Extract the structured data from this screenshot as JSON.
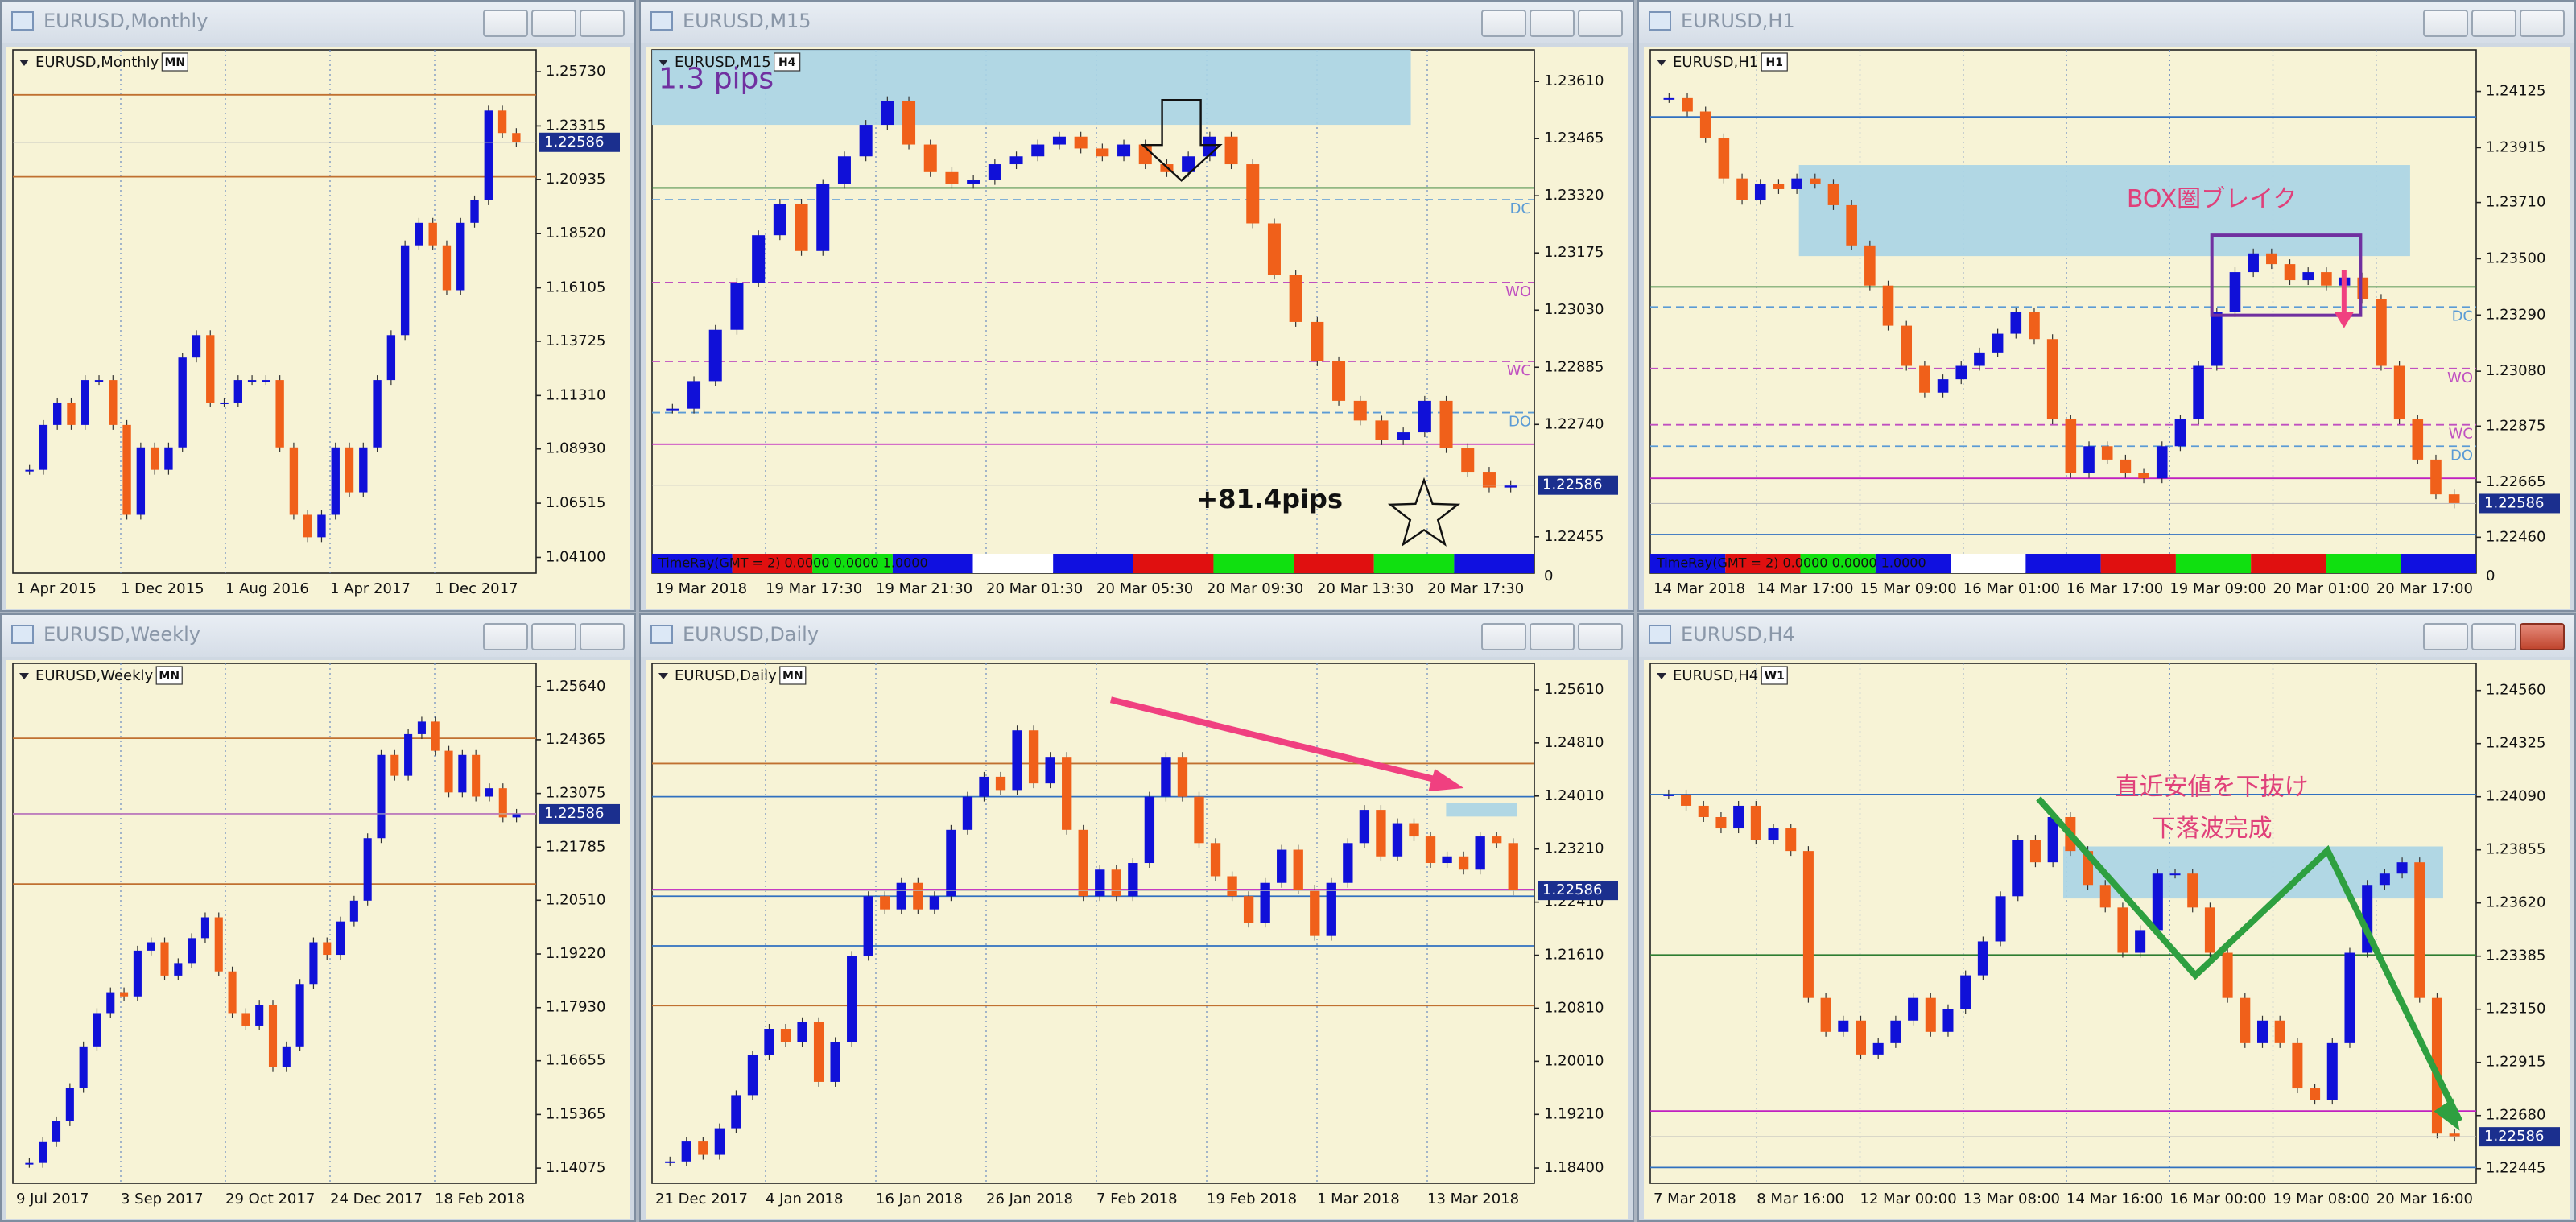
{
  "windows": [
    {
      "title": "EURUSD,Monthly",
      "label": "EURUSD,Monthly",
      "badge": "MN",
      "ylim": [
        1.034,
        1.267
      ],
      "price_ticks": [
        {
          "value": 1.2573,
          "label": "1.25730"
        },
        {
          "value": 1.23315,
          "label": "1.23315"
        },
        {
          "value": 1.20935,
          "label": "1.20935"
        },
        {
          "value": 1.1852,
          "label": "1.18520"
        },
        {
          "value": 1.16105,
          "label": "1.16105"
        },
        {
          "value": 1.13725,
          "label": "1.13725"
        },
        {
          "value": 1.1131,
          "label": "1.11310"
        },
        {
          "value": 1.0893,
          "label": "1.08930"
        },
        {
          "value": 1.06515,
          "label": "1.06515"
        },
        {
          "value": 1.041,
          "label": "1.04100"
        }
      ],
      "time_labels": [
        "1 Apr 2015",
        "1 Dec 2015",
        "1 Aug 2016",
        "1 Apr 2017",
        "1 Dec 2017"
      ],
      "current_price": 1.22586,
      "closes": [
        1.08,
        1.1,
        1.11,
        1.1,
        1.12,
        1.12,
        1.1,
        1.06,
        1.09,
        1.08,
        1.09,
        1.13,
        1.14,
        1.11,
        1.11,
        1.12,
        1.12,
        1.12,
        1.09,
        1.06,
        1.05,
        1.06,
        1.09,
        1.07,
        1.09,
        1.12,
        1.14,
        1.18,
        1.19,
        1.18,
        1.16,
        1.19,
        1.2,
        1.24,
        1.23,
        1.22586
      ],
      "levels": [
        {
          "value": 1.247,
          "color": "#c07030"
        },
        {
          "value": 1.2105,
          "color": "#c07030"
        }
      ],
      "annotations": []
    },
    {
      "title": "EURUSD,M15",
      "label": "EURUSD,M15",
      "badge": "H4",
      "ylim": [
        1.2242,
        1.2369
      ],
      "price_ticks": [
        {
          "value": 1.2361,
          "label": "1.23610"
        },
        {
          "value": 1.23465,
          "label": "1.23465"
        },
        {
          "value": 1.2332,
          "label": "1.23320"
        },
        {
          "value": 1.23175,
          "label": "1.23175"
        },
        {
          "value": 1.2303,
          "label": "1.23030"
        },
        {
          "value": 1.22885,
          "label": "1.22885"
        },
        {
          "value": 1.2274,
          "label": "1.22740"
        },
        {
          "value": 1.22455,
          "label": "1.22455"
        }
      ],
      "time_labels": [
        "19 Mar 2018",
        "19 Mar 17:30",
        "19 Mar 21:30",
        "20 Mar 01:30",
        "20 Mar 05:30",
        "20 Mar 09:30",
        "20 Mar 13:30",
        "20 Mar 17:30"
      ],
      "current_price": 1.22586,
      "closes": [
        1.2278,
        1.2285,
        1.2298,
        1.231,
        1.2322,
        1.233,
        1.2318,
        1.2335,
        1.2342,
        1.235,
        1.2356,
        1.2345,
        1.2338,
        1.2335,
        1.2336,
        1.234,
        1.2342,
        1.2345,
        1.2347,
        1.2344,
        1.2342,
        1.2345,
        1.234,
        1.2338,
        1.2342,
        1.2347,
        1.234,
        1.2325,
        1.2312,
        1.23,
        1.229,
        1.228,
        1.2275,
        1.227,
        1.2272,
        1.228,
        1.2268,
        1.2262,
        1.2258,
        1.22586
      ],
      "box": [
        1.235,
        1.2369
      ],
      "levels": [
        {
          "value": 1.2334,
          "color": "#2e7d32"
        },
        {
          "value": 1.2331,
          "color": "#5b9bd5",
          "label": "DC",
          "dash": true
        },
        {
          "value": 1.231,
          "color": "#c050c0",
          "label": "WO",
          "dash": true
        },
        {
          "value": 1.229,
          "color": "#c050c0",
          "label": "WC",
          "dash": true
        },
        {
          "value": 1.2277,
          "color": "#5b9bd5",
          "label": "DO",
          "dash": true
        },
        {
          "value": 1.2269,
          "color": "#c020c0"
        }
      ],
      "indicator": {
        "text": "TimeRay(GMT = 2) 0.0000 0.0000 1.0000",
        "scale": 0
      },
      "annotations": [
        {
          "text": "1.3 pips",
          "color": "#7030a0"
        },
        {
          "text": "+81.4pips",
          "color": "#111111"
        }
      ]
    },
    {
      "title": "EURUSD,H1",
      "label": "EURUSD,H1",
      "badge": "H1",
      "ylim": [
        1.2241,
        1.2428
      ],
      "price_ticks": [
        {
          "value": 1.24125,
          "label": "1.24125"
        },
        {
          "value": 1.23915,
          "label": "1.23915"
        },
        {
          "value": 1.2371,
          "label": "1.23710"
        },
        {
          "value": 1.235,
          "label": "1.23500"
        },
        {
          "value": 1.2329,
          "label": "1.23290"
        },
        {
          "value": 1.2308,
          "label": "1.23080"
        },
        {
          "value": 1.22875,
          "label": "1.22875"
        },
        {
          "value": 1.22665,
          "label": "1.22665"
        },
        {
          "value": 1.2246,
          "label": "1.22460"
        }
      ],
      "time_labels": [
        "14 Mar 2018",
        "14 Mar 17:00",
        "15 Mar 09:00",
        "16 Mar 01:00",
        "16 Mar 17:00",
        "19 Mar 09:00",
        "20 Mar 01:00",
        "20 Mar 17:00"
      ],
      "current_price": 1.22586,
      "closes": [
        1.241,
        1.2405,
        1.2395,
        1.238,
        1.2372,
        1.2378,
        1.2376,
        1.238,
        1.2378,
        1.237,
        1.2355,
        1.234,
        1.2325,
        1.231,
        1.23,
        1.2305,
        1.231,
        1.2315,
        1.2322,
        1.233,
        1.232,
        1.229,
        1.227,
        1.228,
        1.2275,
        1.227,
        1.2268,
        1.228,
        1.229,
        1.231,
        1.233,
        1.2345,
        1.2352,
        1.2348,
        1.2342,
        1.2345,
        1.234,
        1.2343,
        1.2335,
        1.231,
        1.229,
        1.2275,
        1.2262,
        1.22586
      ],
      "box": [
        1.2351,
        1.2385
      ],
      "levels": [
        {
          "value": 1.2403,
          "color": "#3070c0"
        },
        {
          "value": 1.23395,
          "color": "#2e7d32"
        },
        {
          "value": 1.2332,
          "color": "#5b9bd5",
          "label": "DC",
          "dash": true
        },
        {
          "value": 1.2309,
          "color": "#c050c0",
          "label": "WO",
          "dash": true
        },
        {
          "value": 1.2288,
          "color": "#c050c0",
          "label": "WC",
          "dash": true
        },
        {
          "value": 1.228,
          "color": "#5b9bd5",
          "label": "DO",
          "dash": true
        },
        {
          "value": 1.2268,
          "color": "#c020c0"
        },
        {
          "value": 1.2247,
          "color": "#3070c0"
        }
      ],
      "indicator": {
        "text": "TimeRay(GMT = 2) 0.0000 0.0000 1.0000",
        "scale": 0
      },
      "annotations": [
        {
          "text": "BOX圏ブレイク",
          "color": "#e0407a"
        }
      ]
    },
    {
      "title": "EURUSD,Weekly",
      "label": "EURUSD,Weekly",
      "badge": "MN",
      "ylim": [
        1.1371,
        1.262
      ],
      "price_ticks": [
        {
          "value": 1.2564,
          "label": "1.25640"
        },
        {
          "value": 1.24365,
          "label": "1.24365"
        },
        {
          "value": 1.23075,
          "label": "1.23075"
        },
        {
          "value": 1.21785,
          "label": "1.21785"
        },
        {
          "value": 1.2051,
          "label": "1.20510"
        },
        {
          "value": 1.1922,
          "label": "1.19220"
        },
        {
          "value": 1.1793,
          "label": "1.17930"
        },
        {
          "value": 1.16655,
          "label": "1.16655"
        },
        {
          "value": 1.15365,
          "label": "1.15365"
        },
        {
          "value": 1.14075,
          "label": "1.14075"
        }
      ],
      "time_labels": [
        "9 Jul 2017",
        "3 Sep 2017",
        "29 Oct 2017",
        "24 Dec 2017",
        "18 Feb 2018"
      ],
      "current_price": 1.22586,
      "closes": [
        1.142,
        1.147,
        1.152,
        1.16,
        1.17,
        1.178,
        1.183,
        1.182,
        1.193,
        1.195,
        1.187,
        1.19,
        1.196,
        1.201,
        1.188,
        1.178,
        1.175,
        1.18,
        1.165,
        1.17,
        1.185,
        1.195,
        1.192,
        1.2,
        1.205,
        1.22,
        1.24,
        1.235,
        1.245,
        1.248,
        1.241,
        1.231,
        1.24,
        1.23,
        1.232,
        1.225,
        1.22586
      ],
      "levels": [
        {
          "value": 1.244,
          "color": "#c07030"
        },
        {
          "value": 1.209,
          "color": "#c07030"
        },
        {
          "value": 1.22586,
          "color": "#c020c0"
        }
      ],
      "annotations": []
    },
    {
      "title": "EURUSD,Daily",
      "label": "EURUSD,Daily",
      "badge": "MN",
      "ylim": [
        1.1817,
        1.2601
      ],
      "price_ticks": [
        {
          "value": 1.2561,
          "label": "1.25610"
        },
        {
          "value": 1.2481,
          "label": "1.24810"
        },
        {
          "value": 1.2401,
          "label": "1.24010"
        },
        {
          "value": 1.2321,
          "label": "1.23210"
        },
        {
          "value": 1.2241,
          "label": "1.22410"
        },
        {
          "value": 1.2161,
          "label": "1.21610"
        },
        {
          "value": 1.2081,
          "label": "1.20810"
        },
        {
          "value": 1.2001,
          "label": "1.20010"
        },
        {
          "value": 1.1921,
          "label": "1.19210"
        },
        {
          "value": 1.184,
          "label": "1.18400"
        }
      ],
      "time_labels": [
        "21 Dec 2017",
        "4 Jan 2018",
        "16 Jan 2018",
        "26 Jan 2018",
        "7 Feb 2018",
        "19 Feb 2018",
        "1 Mar 2018",
        "13 Mar 2018"
      ],
      "current_price": 1.22586,
      "closes": [
        1.185,
        1.188,
        1.186,
        1.19,
        1.195,
        1.201,
        1.205,
        1.203,
        1.206,
        1.197,
        1.203,
        1.216,
        1.225,
        1.223,
        1.227,
        1.223,
        1.225,
        1.235,
        1.24,
        1.243,
        1.241,
        1.25,
        1.242,
        1.246,
        1.235,
        1.225,
        1.229,
        1.225,
        1.23,
        1.24,
        1.246,
        1.24,
        1.233,
        1.228,
        1.225,
        1.221,
        1.227,
        1.232,
        1.226,
        1.219,
        1.227,
        1.233,
        1.238,
        1.231,
        1.236,
        1.234,
        1.23,
        1.231,
        1.229,
        1.234,
        1.233,
        1.22586
      ],
      "box": [
        1.237,
        1.239
      ],
      "levels": [
        {
          "value": 1.245,
          "color": "#c07030"
        },
        {
          "value": 1.24,
          "color": "#3070c0"
        },
        {
          "value": 1.226,
          "color": "#c020c0"
        },
        {
          "value": 1.225,
          "color": "#3070c0"
        },
        {
          "value": 1.2175,
          "color": "#3070c0"
        },
        {
          "value": 1.2085,
          "color": "#c07030"
        }
      ],
      "annotations": []
    },
    {
      "title": "EURUSD,H4",
      "label": "EURUSD,H4",
      "badge": "W1",
      "ylim": [
        1.2238,
        1.2468
      ],
      "price_ticks": [
        {
          "value": 1.2456,
          "label": "1.24560"
        },
        {
          "value": 1.24325,
          "label": "1.24325"
        },
        {
          "value": 1.2409,
          "label": "1.24090"
        },
        {
          "value": 1.23855,
          "label": "1.23855"
        },
        {
          "value": 1.2362,
          "label": "1.23620"
        },
        {
          "value": 1.23385,
          "label": "1.23385"
        },
        {
          "value": 1.2315,
          "label": "1.23150"
        },
        {
          "value": 1.22915,
          "label": "1.22915"
        },
        {
          "value": 1.2268,
          "label": "1.22680"
        },
        {
          "value": 1.22445,
          "label": "1.22445"
        }
      ],
      "time_labels": [
        "7 Mar 2018",
        "8 Mar 16:00",
        "12 Mar 00:00",
        "13 Mar 08:00",
        "14 Mar 16:00",
        "16 Mar 00:00",
        "19 Mar 08:00",
        "20 Mar 16:00"
      ],
      "current_price": 1.22586,
      "closes": [
        1.241,
        1.2405,
        1.24,
        1.2395,
        1.2405,
        1.239,
        1.2395,
        1.2385,
        1.232,
        1.2305,
        1.231,
        1.2295,
        1.23,
        1.231,
        1.232,
        1.2305,
        1.2315,
        1.233,
        1.2345,
        1.2365,
        1.239,
        1.238,
        1.24,
        1.2385,
        1.237,
        1.236,
        1.234,
        1.235,
        1.2375,
        1.2375,
        1.236,
        1.234,
        1.232,
        1.23,
        1.231,
        1.23,
        1.228,
        1.2275,
        1.23,
        1.234,
        1.237,
        1.2375,
        1.238,
        1.232,
        1.226,
        1.22586
      ],
      "box": [
        1.2364,
        1.2387
      ],
      "levels": [
        {
          "value": 1.241,
          "color": "#3070c0"
        },
        {
          "value": 1.2339,
          "color": "#2e7d32"
        },
        {
          "value": 1.227,
          "color": "#c020c0"
        },
        {
          "value": 1.2245,
          "color": "#3070c0"
        }
      ],
      "annotations": [
        {
          "text": "直近安値を下抜け",
          "color": "#e0407a"
        },
        {
          "text": "下落波完成",
          "color": "#e0407a"
        }
      ]
    }
  ]
}
